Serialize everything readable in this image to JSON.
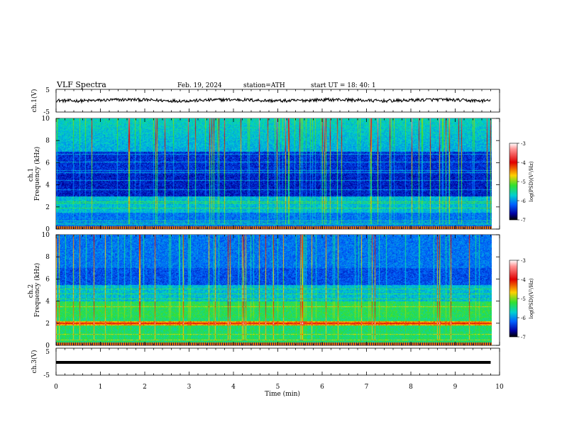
{
  "header": {
    "title": "VLF Spectra",
    "date": "Feb. 19, 2024",
    "station": "station=ATH",
    "start": "start UT =   18: 40: 1"
  },
  "chart_data": [
    {
      "type": "line",
      "panel": "ch1-waveform",
      "ylabel": "ch.1(V)",
      "ylim": [
        -5,
        5
      ],
      "yticks": [
        "5",
        "-5"
      ],
      "xlim": [
        0,
        10
      ],
      "trace_level_v": 0.2,
      "trace_color": "#000000"
    },
    {
      "type": "heatmap",
      "panel": "ch1-spectrogram",
      "ylabel": "ch.1 Frequency (kHz)",
      "ylim": [
        0,
        10
      ],
      "yticks": [
        "0",
        "2",
        "4",
        "6",
        "8",
        "10"
      ],
      "xlim": [
        0,
        10
      ],
      "data_end_min": 9.8,
      "colorbar": {
        "label": "log(PSD)(V²/Hz)",
        "min": -7,
        "max": -3,
        "ticks": [
          "-3",
          "-4",
          "-5",
          "-6",
          "-7"
        ]
      },
      "lines_khz": [
        0.2,
        0.45,
        0.55,
        0.8,
        1.9,
        2.35,
        2.5,
        3.6,
        4.4,
        5.1,
        5.3,
        6.1,
        6.8
      ]
    },
    {
      "type": "heatmap",
      "panel": "ch2-spectrogram",
      "ylabel": "ch.2 Frequency (kHz)",
      "ylim": [
        0,
        10
      ],
      "yticks": [
        "0",
        "2",
        "4",
        "6",
        "8",
        "10"
      ],
      "xlim": [
        0,
        10
      ],
      "data_end_min": 9.8,
      "colorbar": {
        "label": "log(PSD)(V²/Hz)",
        "min": -7,
        "max": -3,
        "ticks": [
          "-3",
          "-4",
          "-5",
          "-6",
          "-7"
        ]
      },
      "lines_khz": [
        0.5,
        1.0,
        2.0,
        2.05,
        3.5,
        4.2,
        4.7,
        5.1
      ]
    },
    {
      "type": "line",
      "panel": "ch3-waveform",
      "ylabel": "ch.3(V)",
      "ylim": [
        -5,
        5
      ],
      "yticks": [
        "5",
        "-5"
      ],
      "xlim": [
        0,
        10
      ],
      "trace_level_v": 0.0,
      "trace_color": "#000000"
    }
  ],
  "xaxis": {
    "label": "Time (min)",
    "ticks": [
      "0",
      "1",
      "2",
      "3",
      "4",
      "5",
      "6",
      "7",
      "8",
      "9",
      "10"
    ]
  }
}
